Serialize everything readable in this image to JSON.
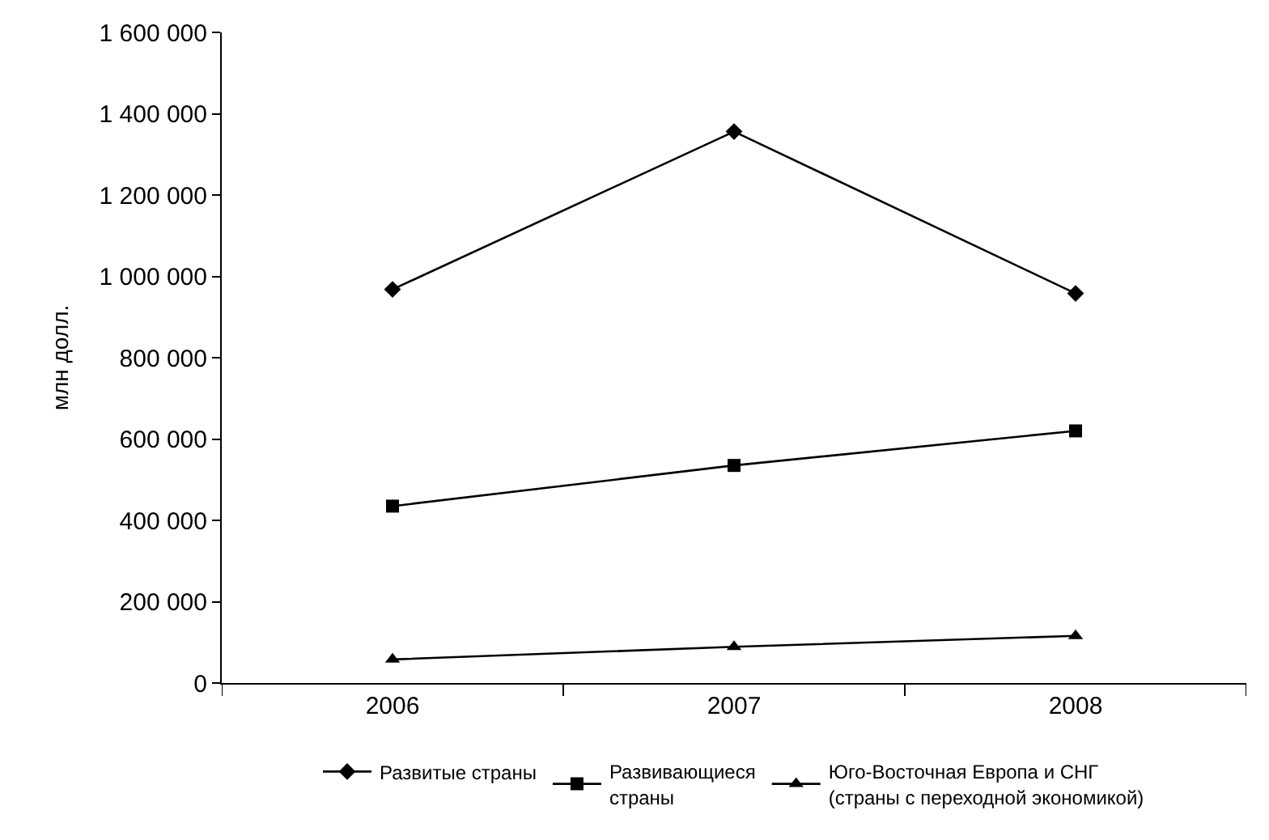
{
  "chart_data": {
    "type": "line",
    "ylabel": "млн долл.",
    "categories": [
      "2006",
      "2007",
      "2008"
    ],
    "series": [
      {
        "name": "Развитые страны",
        "color": "#000000",
        "marker": "diamond",
        "values": [
          968000,
          1356000,
          958000
        ]
      },
      {
        "name": "Развивающиеся\nстраны",
        "color": "#000000",
        "marker": "square",
        "values": [
          435000,
          535000,
          620000
        ]
      },
      {
        "name": "Юго-Восточная Европа и СНГ\n(страны с переходной экономикой)",
        "color": "#000000",
        "marker": "triangle",
        "values": [
          58000,
          89000,
          116000
        ]
      }
    ],
    "ylim": [
      0,
      1600000
    ],
    "yticks": [
      0,
      {
        "value": 200000,
        "label": "200 000"
      },
      {
        "value": 400000,
        "label": "400 000"
      },
      {
        "value": 600000,
        "label": "600 000"
      },
      {
        "value": 800000,
        "label": "800 000"
      },
      {
        "value": 1000000,
        "label": "1 000 000"
      },
      {
        "value": 1200000,
        "label": "1 200 000"
      },
      {
        "value": 1400000,
        "label": "1 400 000"
      },
      {
        "value": 1600000,
        "label": "1 600 000"
      }
    ],
    "legend": "bottom",
    "line_style": "solid"
  }
}
